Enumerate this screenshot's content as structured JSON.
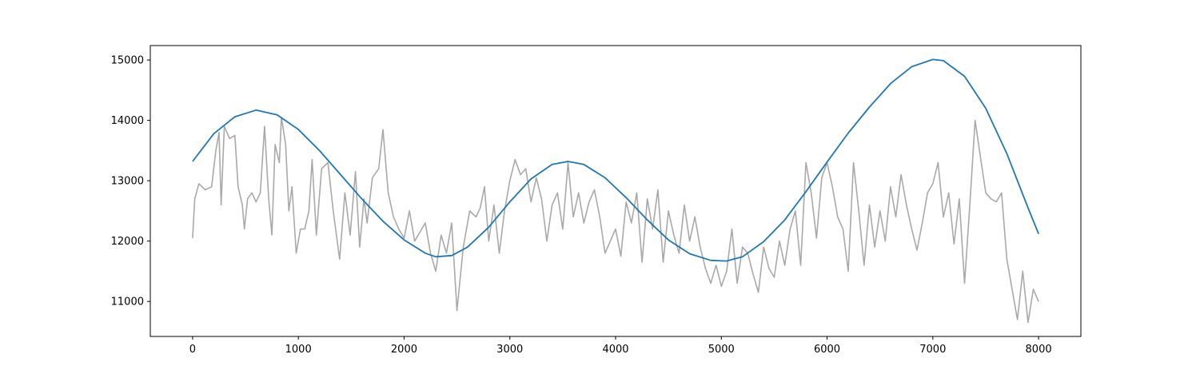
{
  "chart_data": {
    "type": "line",
    "title": "",
    "xlabel": "",
    "ylabel": "",
    "xlim": [
      -400,
      8400
    ],
    "ylim": [
      10420,
      15240
    ],
    "x_ticks": [
      "0",
      "1000",
      "2000",
      "3000",
      "4000",
      "5000",
      "6000",
      "7000",
      "8000"
    ],
    "y_ticks": [
      "11000",
      "12000",
      "13000",
      "14000",
      "15000"
    ],
    "grid": false,
    "legend": "none",
    "series": [
      {
        "color": "#a9a9a9",
        "points": [
          [
            0,
            12050
          ],
          [
            20,
            12700
          ],
          [
            60,
            12950
          ],
          [
            120,
            12850
          ],
          [
            180,
            12900
          ],
          [
            220,
            13500
          ],
          [
            250,
            13800
          ],
          [
            270,
            12600
          ],
          [
            300,
            13900
          ],
          [
            350,
            13700
          ],
          [
            400,
            13750
          ],
          [
            430,
            12900
          ],
          [
            470,
            12600
          ],
          [
            490,
            12200
          ],
          [
            520,
            12700
          ],
          [
            560,
            12800
          ],
          [
            600,
            12650
          ],
          [
            640,
            12800
          ],
          [
            680,
            13900
          ],
          [
            720,
            12700
          ],
          [
            750,
            12100
          ],
          [
            780,
            13600
          ],
          [
            820,
            13300
          ],
          [
            840,
            14050
          ],
          [
            880,
            13600
          ],
          [
            910,
            12500
          ],
          [
            940,
            12900
          ],
          [
            980,
            11800
          ],
          [
            1020,
            12200
          ],
          [
            1060,
            12200
          ],
          [
            1100,
            12500
          ],
          [
            1130,
            13350
          ],
          [
            1170,
            12100
          ],
          [
            1220,
            13200
          ],
          [
            1280,
            13300
          ],
          [
            1330,
            12500
          ],
          [
            1390,
            11700
          ],
          [
            1440,
            12800
          ],
          [
            1490,
            12100
          ],
          [
            1540,
            13150
          ],
          [
            1580,
            11900
          ],
          [
            1620,
            12700
          ],
          [
            1650,
            12300
          ],
          [
            1700,
            13050
          ],
          [
            1760,
            13200
          ],
          [
            1800,
            13850
          ],
          [
            1850,
            12800
          ],
          [
            1900,
            12400
          ],
          [
            1950,
            12200
          ],
          [
            2000,
            12050
          ],
          [
            2050,
            12500
          ],
          [
            2100,
            12000
          ],
          [
            2150,
            12150
          ],
          [
            2200,
            12300
          ],
          [
            2250,
            11800
          ],
          [
            2300,
            11500
          ],
          [
            2350,
            12100
          ],
          [
            2400,
            11800
          ],
          [
            2450,
            12300
          ],
          [
            2500,
            10850
          ],
          [
            2560,
            11900
          ],
          [
            2620,
            12500
          ],
          [
            2680,
            12400
          ],
          [
            2720,
            12550
          ],
          [
            2760,
            12900
          ],
          [
            2800,
            12000
          ],
          [
            2850,
            12600
          ],
          [
            2900,
            11800
          ],
          [
            2950,
            12500
          ],
          [
            3000,
            13000
          ],
          [
            3050,
            13350
          ],
          [
            3100,
            13100
          ],
          [
            3150,
            13200
          ],
          [
            3200,
            12650
          ],
          [
            3250,
            13050
          ],
          [
            3300,
            12700
          ],
          [
            3350,
            12000
          ],
          [
            3400,
            12600
          ],
          [
            3450,
            12800
          ],
          [
            3500,
            12200
          ],
          [
            3550,
            13300
          ],
          [
            3600,
            12400
          ],
          [
            3650,
            12800
          ],
          [
            3700,
            12300
          ],
          [
            3750,
            12650
          ],
          [
            3800,
            12850
          ],
          [
            3850,
            12400
          ],
          [
            3900,
            11800
          ],
          [
            3950,
            12000
          ],
          [
            4000,
            12200
          ],
          [
            4050,
            11750
          ],
          [
            4100,
            12650
          ],
          [
            4150,
            12300
          ],
          [
            4200,
            12800
          ],
          [
            4250,
            11650
          ],
          [
            4300,
            12700
          ],
          [
            4350,
            12200
          ],
          [
            4400,
            12850
          ],
          [
            4450,
            11650
          ],
          [
            4500,
            12500
          ],
          [
            4550,
            12100
          ],
          [
            4600,
            11800
          ],
          [
            4650,
            12600
          ],
          [
            4700,
            12000
          ],
          [
            4750,
            12400
          ],
          [
            4800,
            11900
          ],
          [
            4850,
            11550
          ],
          [
            4900,
            11300
          ],
          [
            4950,
            11600
          ],
          [
            5000,
            11250
          ],
          [
            5050,
            11500
          ],
          [
            5100,
            12200
          ],
          [
            5150,
            11300
          ],
          [
            5200,
            11900
          ],
          [
            5250,
            11800
          ],
          [
            5300,
            11450
          ],
          [
            5350,
            11150
          ],
          [
            5400,
            11900
          ],
          [
            5450,
            11550
          ],
          [
            5500,
            11400
          ],
          [
            5550,
            12000
          ],
          [
            5600,
            11600
          ],
          [
            5650,
            12200
          ],
          [
            5700,
            12500
          ],
          [
            5750,
            11600
          ],
          [
            5800,
            13300
          ],
          [
            5850,
            12800
          ],
          [
            5900,
            12050
          ],
          [
            5950,
            13050
          ],
          [
            6000,
            13300
          ],
          [
            6050,
            12900
          ],
          [
            6100,
            12400
          ],
          [
            6150,
            12200
          ],
          [
            6200,
            11500
          ],
          [
            6250,
            13300
          ],
          [
            6300,
            12500
          ],
          [
            6350,
            11600
          ],
          [
            6400,
            12600
          ],
          [
            6450,
            11900
          ],
          [
            6500,
            12500
          ],
          [
            6550,
            12000
          ],
          [
            6600,
            12900
          ],
          [
            6650,
            12400
          ],
          [
            6700,
            13100
          ],
          [
            6750,
            12600
          ],
          [
            6800,
            12200
          ],
          [
            6850,
            11850
          ],
          [
            6900,
            12300
          ],
          [
            6950,
            12800
          ],
          [
            7000,
            12950
          ],
          [
            7050,
            13300
          ],
          [
            7100,
            12400
          ],
          [
            7150,
            12800
          ],
          [
            7200,
            11950
          ],
          [
            7250,
            12700
          ],
          [
            7300,
            11300
          ],
          [
            7350,
            12600
          ],
          [
            7400,
            14000
          ],
          [
            7450,
            13400
          ],
          [
            7500,
            12800
          ],
          [
            7550,
            12700
          ],
          [
            7600,
            12650
          ],
          [
            7650,
            12800
          ],
          [
            7700,
            11700
          ],
          [
            7750,
            11200
          ],
          [
            7800,
            10700
          ],
          [
            7850,
            11500
          ],
          [
            7900,
            10650
          ],
          [
            7950,
            11200
          ],
          [
            8000,
            11000
          ]
        ]
      },
      {
        "color": "#1f77b4",
        "points": [
          [
            0,
            13320
          ],
          [
            200,
            13780
          ],
          [
            400,
            14060
          ],
          [
            600,
            14170
          ],
          [
            800,
            14090
          ],
          [
            1000,
            13850
          ],
          [
            1200,
            13500
          ],
          [
            1400,
            13100
          ],
          [
            1600,
            12700
          ],
          [
            1800,
            12330
          ],
          [
            2000,
            12020
          ],
          [
            2200,
            11800
          ],
          [
            2300,
            11740
          ],
          [
            2450,
            11760
          ],
          [
            2600,
            11900
          ],
          [
            2800,
            12230
          ],
          [
            3000,
            12650
          ],
          [
            3200,
            13030
          ],
          [
            3400,
            13270
          ],
          [
            3550,
            13320
          ],
          [
            3700,
            13270
          ],
          [
            3900,
            13050
          ],
          [
            4100,
            12720
          ],
          [
            4300,
            12350
          ],
          [
            4500,
            12020
          ],
          [
            4700,
            11790
          ],
          [
            4900,
            11680
          ],
          [
            5050,
            11670
          ],
          [
            5200,
            11740
          ],
          [
            5400,
            11990
          ],
          [
            5600,
            12350
          ],
          [
            5800,
            12820
          ],
          [
            6000,
            13310
          ],
          [
            6200,
            13790
          ],
          [
            6400,
            14220
          ],
          [
            6600,
            14610
          ],
          [
            6800,
            14890
          ],
          [
            7000,
            15010
          ],
          [
            7100,
            14990
          ],
          [
            7300,
            14730
          ],
          [
            7500,
            14200
          ],
          [
            7700,
            13450
          ],
          [
            7900,
            12550
          ],
          [
            8000,
            12120
          ]
        ]
      }
    ]
  }
}
